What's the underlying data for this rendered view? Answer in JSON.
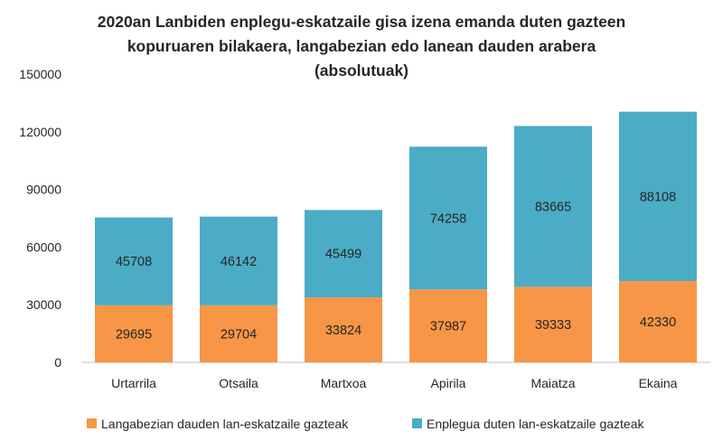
{
  "chart_data": {
    "type": "bar",
    "stacked": true,
    "title_lines": [
      "2020an Lanbiden enplegu-eskatzaile gisa izena emanda duten gazteen",
      "kopuruaren bilakaera, langabezian edo lanean dauden arabera",
      "(absolutuak)"
    ],
    "categories": [
      "Urtarrila",
      "Otsaila",
      "Martxoa",
      "Apirila",
      "Maiatza",
      "Ekaina"
    ],
    "series": [
      {
        "name": "Langabezian dauden lan-eskatzaile gazteak",
        "color": "#F79646",
        "values": [
          29695,
          29704,
          33824,
          37987,
          39333,
          42330
        ]
      },
      {
        "name": "Enplegua duten lan-eskatzaile gazteak",
        "color": "#4BACC6",
        "values": [
          45708,
          46142,
          45499,
          74258,
          83665,
          88108
        ]
      }
    ],
    "ylim": [
      0,
      150000
    ],
    "yticks": [
      0,
      30000,
      60000,
      90000,
      120000,
      150000
    ],
    "grid": false,
    "legend_position": "bottom"
  }
}
